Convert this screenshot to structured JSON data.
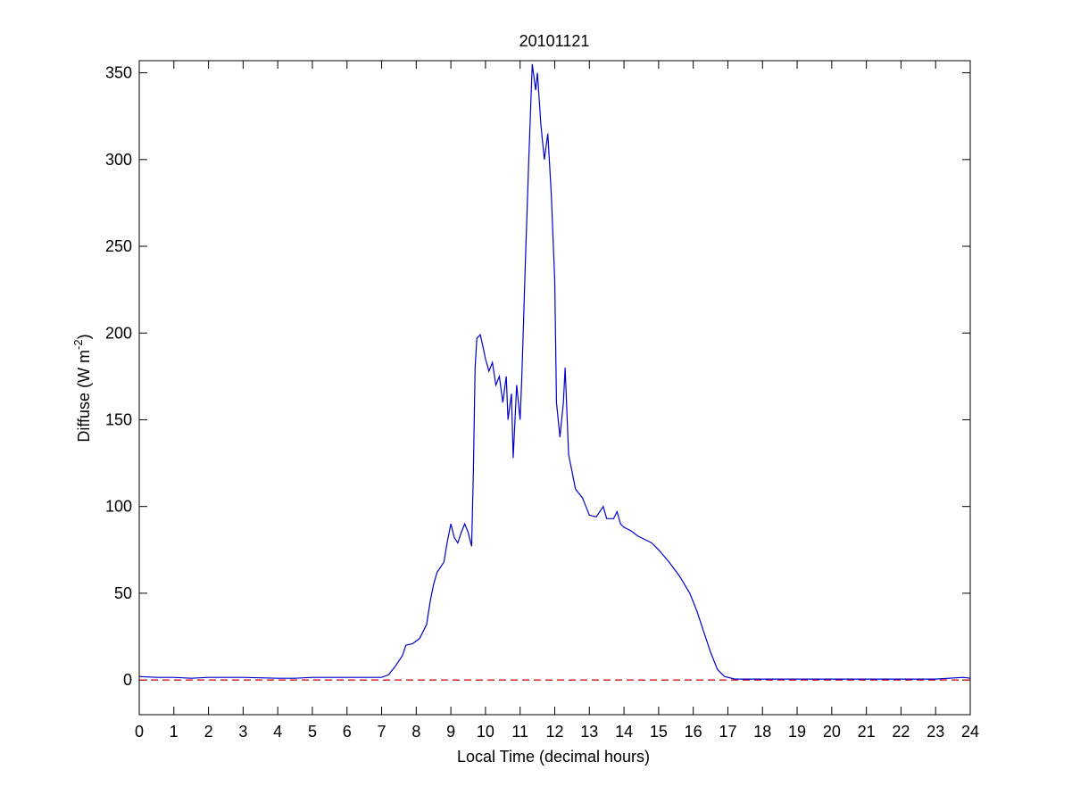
{
  "chart_data": {
    "type": "line",
    "title": "20101121",
    "xlabel": "Local Time (decimal hours)",
    "ylabel_parts": [
      "Diffuse (W m",
      "-2",
      ")"
    ],
    "x": [
      0,
      0.5,
      1,
      1.5,
      2,
      3,
      4,
      4.5,
      5,
      6,
      7,
      7.2,
      7.4,
      7.6,
      7.7,
      7.9,
      8.1,
      8.3,
      8.4,
      8.5,
      8.6,
      8.8,
      8.9,
      9.0,
      9.1,
      9.2,
      9.3,
      9.4,
      9.5,
      9.6,
      9.65,
      9.7,
      9.75,
      9.85,
      9.95,
      10.0,
      10.1,
      10.2,
      10.3,
      10.4,
      10.5,
      10.6,
      10.65,
      10.75,
      10.8,
      10.9,
      11.0,
      11.05,
      11.15,
      11.25,
      11.35,
      11.45,
      11.5,
      11.6,
      11.7,
      11.8,
      11.9,
      12.0,
      12.05,
      12.15,
      12.25,
      12.3,
      12.4,
      12.5,
      12.6,
      12.8,
      13.0,
      13.2,
      13.4,
      13.5,
      13.7,
      13.8,
      13.9,
      14.0,
      14.2,
      14.4,
      14.6,
      14.8,
      15.0,
      15.3,
      15.6,
      15.9,
      16.1,
      16.3,
      16.5,
      16.7,
      16.9,
      17.2,
      18,
      19,
      20,
      21,
      21.5,
      22,
      23,
      23.8,
      24
    ],
    "series": [
      {
        "color": "#0000cc",
        "values": [
          2,
          1.5,
          1.5,
          1,
          1.5,
          1.5,
          1,
          1,
          1.5,
          1.5,
          1.5,
          3,
          8,
          14,
          20,
          21,
          24,
          32,
          45,
          55,
          62,
          68,
          80,
          90,
          82,
          79,
          85,
          90,
          85,
          77,
          120,
          180,
          197,
          199,
          190,
          185,
          178,
          183,
          170,
          175,
          160,
          175,
          150,
          165,
          128,
          170,
          150,
          175,
          240,
          300,
          355,
          340,
          350,
          320,
          300,
          315,
          280,
          230,
          160,
          140,
          160,
          180,
          130,
          120,
          110,
          105,
          95,
          94,
          100,
          93,
          93,
          97,
          90,
          88,
          86,
          83,
          81,
          79,
          75,
          68,
          60,
          50,
          40,
          28,
          16,
          6,
          2,
          0.5,
          0.5,
          0.5,
          0.5,
          0.5,
          0.5,
          0.5,
          0.5,
          1.5,
          1
        ]
      }
    ],
    "reference_line": {
      "value": 0,
      "color": "#cc0000",
      "dashed": true
    },
    "xlim": [
      0,
      24
    ],
    "ylim": [
      -20,
      357
    ],
    "xticks": [
      0,
      1,
      2,
      3,
      4,
      5,
      6,
      7,
      8,
      9,
      10,
      11,
      12,
      13,
      14,
      15,
      16,
      17,
      18,
      19,
      20,
      21,
      22,
      23,
      24
    ],
    "yticks": [
      0,
      50,
      100,
      150,
      200,
      250,
      300,
      350
    ]
  }
}
